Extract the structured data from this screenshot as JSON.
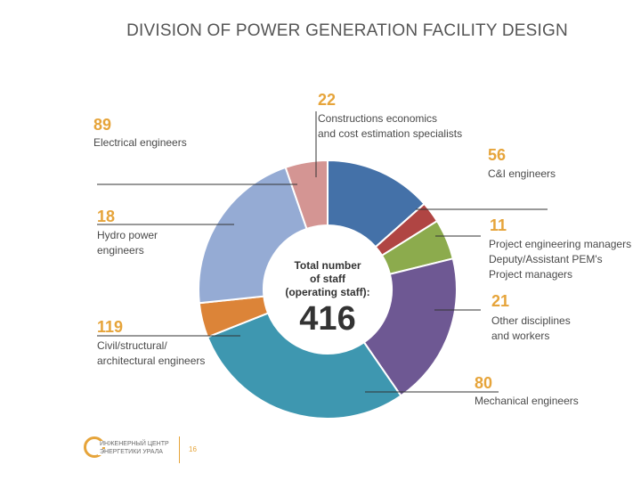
{
  "title": "DIVISION OF POWER GENERATION FACILITY DESIGN",
  "chart_data": {
    "type": "pie",
    "variant": "donut",
    "total_label": "Total number of staff (operating staff):",
    "total_label_lines": [
      "Total number",
      "of staff",
      "(operating staff):"
    ],
    "total": 416,
    "slices": [
      {
        "key": "ci",
        "value": 56,
        "value_text": "56",
        "label_lines": [
          "C&I engineers"
        ],
        "color": "#4471a8"
      },
      {
        "key": "pm",
        "value": 11,
        "value_text": "11",
        "label_lines": [
          "Project engineering managers",
          "Deputy/Assistant PEM's",
          "Project managers"
        ],
        "color": "#b04543"
      },
      {
        "key": "other",
        "value": 21,
        "value_text": "21",
        "label_lines": [
          "Other disciplines",
          "and workers"
        ],
        "color": "#8cab4d"
      },
      {
        "key": "mechanical",
        "value": 80,
        "value_text": "80",
        "label_lines": [
          "Mechanical engineers"
        ],
        "color": "#6e5893"
      },
      {
        "key": "civil",
        "value": 119,
        "value_text": "119",
        "label_lines": [
          "Civil/structural/",
          "architectural engineers"
        ],
        "color": "#3e97b0"
      },
      {
        "key": "hydro",
        "value": 18,
        "value_text": "18",
        "label_lines": [
          "Hydro power",
          "engineers"
        ],
        "color": "#dc8438"
      },
      {
        "key": "electrical",
        "value": 89,
        "value_text": "89",
        "label_lines": [
          "Electrical engineers"
        ],
        "color": "#95abd4"
      },
      {
        "key": "construction",
        "value": 22,
        "value_text": "22",
        "label_lines": [
          "Constructions economics",
          "and cost estimation specialists"
        ],
        "color": "#d49593"
      }
    ]
  },
  "footer": {
    "logo_line1": "ИНЖЕНЕРНЫЙ ЦЕНТР",
    "logo_line2": "ЭНЕРГЕТИКИ УРАЛА",
    "page_number": "16"
  }
}
